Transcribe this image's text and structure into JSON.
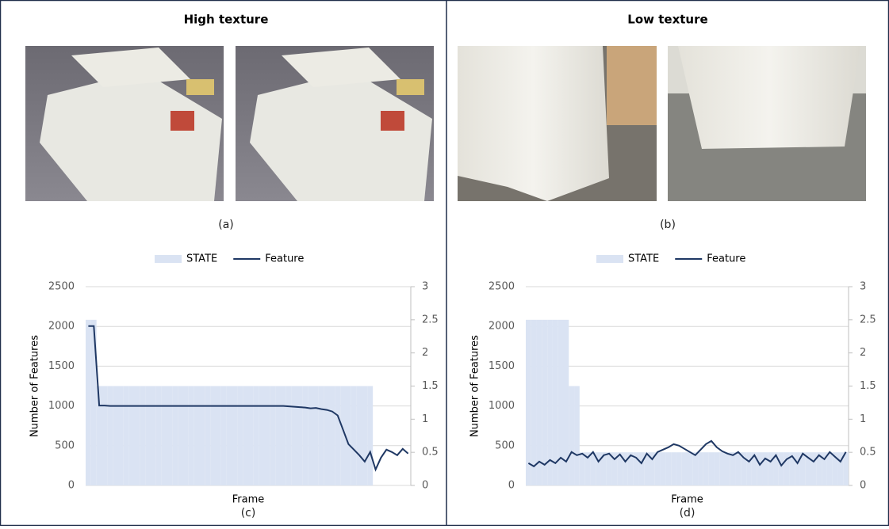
{
  "panels": [
    {
      "title": "High texture",
      "caption": "(a)"
    },
    {
      "title": "Low texture",
      "caption": "(b)"
    }
  ],
  "chart_data": [
    {
      "type": "combo",
      "caption": "(c)",
      "x_label": "Frame",
      "y_label": "Number of Features",
      "ylim": [
        0,
        2500
      ],
      "yticks": [
        0,
        500,
        1000,
        1500,
        2000,
        2500
      ],
      "y2lim": [
        0,
        3
      ],
      "y2ticks": [
        0,
        0.5,
        1,
        1.5,
        2,
        2.5,
        3
      ],
      "grid": true,
      "legend": "top",
      "series": [
        {
          "name": "STATE",
          "color": "#dae3f3",
          "axis": "y2",
          "kind": "bar",
          "values": [
            2.5,
            2.5,
            1.5,
            1.5,
            1.5,
            1.5,
            1.5,
            1.5,
            1.5,
            1.5,
            1.5,
            1.5,
            1.5,
            1.5,
            1.5,
            1.5,
            1.5,
            1.5,
            1.5,
            1.5,
            1.5,
            1.5,
            1.5,
            1.5,
            1.5,
            1.5,
            1.5,
            1.5,
            1.5,
            1.5,
            1.5,
            1.5,
            1.5,
            1.5,
            1.5,
            1.5,
            1.5,
            1.5,
            1.5,
            1.5,
            1.5,
            1.5,
            1.5,
            1.5,
            1.5,
            1.5,
            1.5,
            1.5,
            1.5,
            1.5,
            1.5,
            1.5,
            1.5,
            0,
            0,
            0,
            0,
            0,
            0,
            0
          ]
        },
        {
          "name": "Feature",
          "color": "#1f3864",
          "kind": "line",
          "values": [
            2005,
            2005,
            1005,
            1005,
            1000,
            1000,
            1000,
            1000,
            1000,
            1000,
            1000,
            1000,
            1000,
            1000,
            1000,
            1000,
            1000,
            1000,
            1000,
            1000,
            1000,
            1000,
            1000,
            1000,
            1000,
            1000,
            1000,
            1000,
            1000,
            1000,
            1000,
            1000,
            1000,
            1000,
            1000,
            1000,
            1000,
            995,
            990,
            985,
            980,
            970,
            975,
            960,
            950,
            930,
            880,
            700,
            520,
            450,
            380,
            300,
            420,
            200,
            350,
            450,
            420,
            380,
            460,
            400
          ]
        }
      ]
    },
    {
      "type": "combo",
      "caption": "(d)",
      "x_label": "Frame",
      "y_label": "Number of Features",
      "ylim": [
        0,
        2500
      ],
      "yticks": [
        0,
        500,
        1000,
        1500,
        2000,
        2500
      ],
      "y2lim": [
        0,
        3
      ],
      "y2ticks": [
        0,
        0.5,
        1,
        1.5,
        2,
        2.5,
        3
      ],
      "grid": true,
      "legend": "top",
      "series": [
        {
          "name": "STATE",
          "color": "#dae3f3",
          "axis": "y2",
          "kind": "bar",
          "values": [
            2.5,
            2.5,
            2.5,
            2.5,
            2.5,
            2.5,
            2.5,
            2.5,
            1.5,
            1.5,
            0.5,
            0.5,
            0.5,
            0.5,
            0.5,
            0.5,
            0.5,
            0.5,
            0.5,
            0.5,
            0.5,
            0.5,
            0.5,
            0.5,
            0.5,
            0.5,
            0.5,
            0.5,
            0.5,
            0.5,
            0.5,
            0.5,
            0.5,
            0.5,
            0.5,
            0.5,
            0.5,
            0.5,
            0.5,
            0.5,
            0.5,
            0.5,
            0.5,
            0.5,
            0.5,
            0.5,
            0.5,
            0.5,
            0.5,
            0.5,
            0.5,
            0.5,
            0.5,
            0.5,
            0.5,
            0.5,
            0.5,
            0.5,
            0.5,
            0.5
          ]
        },
        {
          "name": "Feature",
          "color": "#1f3864",
          "kind": "line",
          "values": [
            280,
            240,
            300,
            260,
            320,
            280,
            350,
            300,
            420,
            380,
            400,
            350,
            420,
            300,
            380,
            400,
            330,
            390,
            300,
            380,
            350,
            280,
            400,
            330,
            420,
            450,
            480,
            520,
            500,
            460,
            420,
            380,
            450,
            520,
            560,
            480,
            430,
            400,
            380,
            420,
            350,
            300,
            380,
            260,
            340,
            300,
            380,
            250,
            330,
            370,
            280,
            400,
            350,
            300,
            380,
            330,
            420,
            360,
            300,
            420
          ]
        }
      ]
    }
  ]
}
